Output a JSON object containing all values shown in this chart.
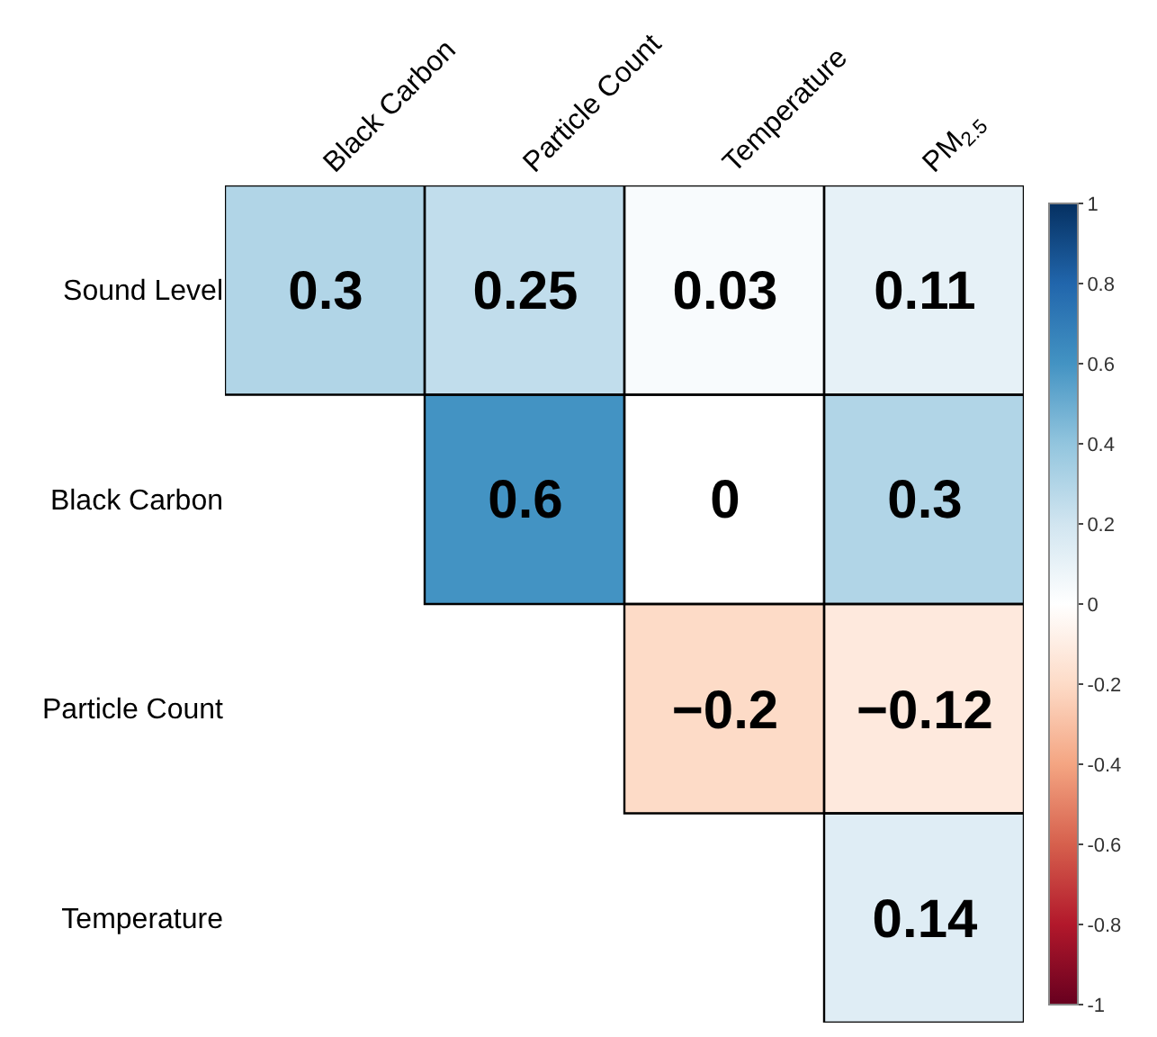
{
  "chart_data": {
    "type": "heatmap",
    "categories": [
      "Black Carbon",
      "Particle Count",
      "Temperature",
      "PM$_{2.5}$"
    ],
    "y_categories": [
      "Sound Level",
      "Black Carbon",
      "Particle Count",
      "Temperature"
    ],
    "cells": [
      [
        0.3,
        0.25,
        0.03,
        0.11
      ],
      [
        null,
        0.6,
        0,
        0.3
      ],
      [
        null,
        null,
        -0.2,
        -0.12
      ],
      [
        null,
        null,
        null,
        0.14
      ]
    ],
    "cell_labels": [
      [
        "0.3",
        "0.25",
        "0.03",
        "0.11"
      ],
      [
        null,
        "0.6",
        "0",
        "0.3"
      ],
      [
        null,
        null,
        "−0.2",
        "−0.12"
      ],
      [
        null,
        null,
        null,
        "0.14"
      ]
    ],
    "clim": [
      -1,
      1
    ],
    "cticks": [
      -1,
      -0.8,
      -0.6,
      -0.4,
      -0.2,
      0,
      0.2,
      0.4,
      0.6,
      0.8,
      1
    ]
  }
}
